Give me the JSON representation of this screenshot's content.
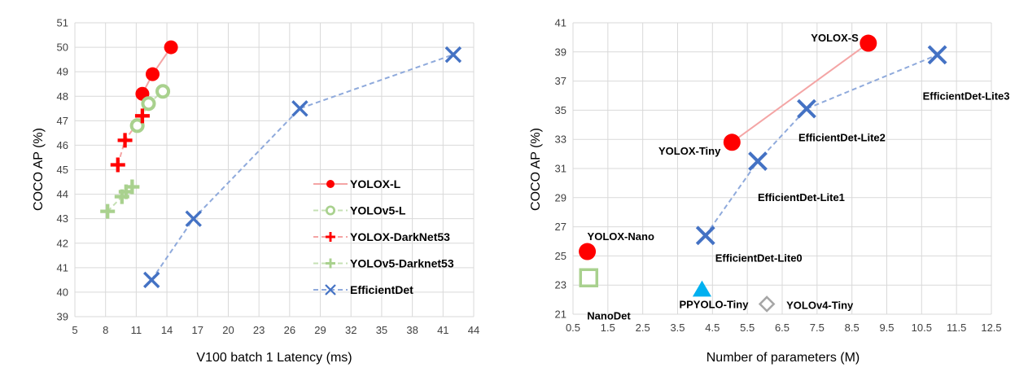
{
  "chart_data": [
    {
      "type": "scatter",
      "xlabel": "V100 batch 1 Latency (ms)",
      "ylabel": "COCO AP (%)",
      "xlim": [
        5,
        44
      ],
      "ylim": [
        39,
        51
      ],
      "x_ticks": [
        "5",
        "8",
        "11",
        "14",
        "17",
        "20",
        "23",
        "26",
        "29",
        "32",
        "35",
        "38",
        "41",
        "44"
      ],
      "y_ticks": [
        "39",
        "40",
        "41",
        "42",
        "43",
        "44",
        "45",
        "46",
        "47",
        "48",
        "49",
        "50",
        "51"
      ],
      "grid": true,
      "legend_position": "bottom-right",
      "series": [
        {
          "name": "YOLOX-L",
          "marker": "circle",
          "color": "#ff0000",
          "line_color": "#f4a5a5",
          "line": "solid",
          "points": [
            [
              11.6,
              48.1
            ],
            [
              12.6,
              48.9
            ],
            [
              14.4,
              50.0
            ]
          ]
        },
        {
          "name": "YOLOv5-L",
          "marker": "ring",
          "color": "#a9d18e",
          "line_color": "#c5e0b4",
          "line": "dashed",
          "points": [
            [
              11.1,
              46.8
            ],
            [
              12.2,
              47.7
            ],
            [
              13.6,
              48.2
            ]
          ]
        },
        {
          "name": "YOLOX-DarkNet53",
          "marker": "plus",
          "color": "#ff0000",
          "line_color": "#f4a5a5",
          "line": "dashed",
          "points": [
            [
              9.2,
              45.2
            ],
            [
              9.9,
              46.2
            ],
            [
              11.6,
              47.2
            ]
          ]
        },
        {
          "name": "YOLOv5-Darknet53",
          "marker": "plus",
          "color": "#a9d18e",
          "line_color": "#c5e0b4",
          "line": "dashed",
          "points": [
            [
              8.2,
              43.3
            ],
            [
              9.6,
              43.9
            ],
            [
              10.0,
              44.1
            ],
            [
              10.6,
              44.3
            ]
          ]
        },
        {
          "name": "EfficientDet",
          "marker": "x",
          "color": "#4472c4",
          "line_color": "#8faadc",
          "line": "dashed",
          "points": [
            [
              12.5,
              40.5
            ],
            [
              16.6,
              43.0
            ],
            [
              27.0,
              47.5
            ],
            [
              42.0,
              49.7
            ]
          ]
        }
      ]
    },
    {
      "type": "scatter",
      "xlabel": "Number of parameters (M)",
      "ylabel": "COCO AP (%)",
      "xlim": [
        0.5,
        12.5
      ],
      "ylim": [
        21,
        41
      ],
      "x_ticks": [
        "0.5",
        "1.5",
        "2.5",
        "3.5",
        "4.5",
        "5.5",
        "6.5",
        "7.5",
        "8.5",
        "9.5",
        "10.5",
        "11.5",
        "12.5"
      ],
      "y_ticks": [
        "21",
        "23",
        "25",
        "27",
        "29",
        "31",
        "33",
        "35",
        "37",
        "39",
        "41"
      ],
      "grid": true,
      "lines": [
        {
          "name": "YOLOX",
          "color": "#f4a5a5",
          "style": "solid",
          "points": [
            [
              5.06,
              32.8
            ],
            [
              8.97,
              39.6
            ]
          ]
        },
        {
          "name": "EfficientDet-Lite",
          "color": "#8faadc",
          "style": "dashed",
          "points": [
            [
              4.3,
              26.4
            ],
            [
              5.8,
              31.5
            ],
            [
              7.2,
              35.1
            ],
            [
              10.95,
              38.8
            ]
          ]
        }
      ],
      "points": [
        {
          "label": "YOLOX-S",
          "x": 8.97,
          "y": 39.6,
          "marker": "circle",
          "color": "#ff0000"
        },
        {
          "label": "YOLOX-Tiny",
          "x": 5.06,
          "y": 32.8,
          "marker": "circle",
          "color": "#ff0000"
        },
        {
          "label": "YOLOX-Nano",
          "x": 0.91,
          "y": 25.3,
          "marker": "circle",
          "color": "#ff0000"
        },
        {
          "label": "EfficientDet-Lite3",
          "x": 10.95,
          "y": 38.8,
          "marker": "x",
          "color": "#4472c4"
        },
        {
          "label": "EfficientDet-Lite2",
          "x": 7.2,
          "y": 35.1,
          "marker": "x",
          "color": "#4472c4"
        },
        {
          "label": "EfficientDet-Lite1",
          "x": 5.8,
          "y": 31.5,
          "marker": "x",
          "color": "#4472c4"
        },
        {
          "label": "EfficientDet-Lite0",
          "x": 4.3,
          "y": 26.4,
          "marker": "x",
          "color": "#4472c4"
        },
        {
          "label": "NanoDet",
          "x": 0.95,
          "y": 23.5,
          "marker": "square",
          "color": "#a9d18e"
        },
        {
          "label": "PPYOLO-Tiny",
          "x": 4.2,
          "y": 22.7,
          "marker": "triangle",
          "color": "#00b0f0"
        },
        {
          "label": "YOLOv4-Tiny",
          "x": 6.06,
          "y": 21.7,
          "marker": "diamond",
          "color": "#a6a6a6"
        }
      ]
    }
  ]
}
